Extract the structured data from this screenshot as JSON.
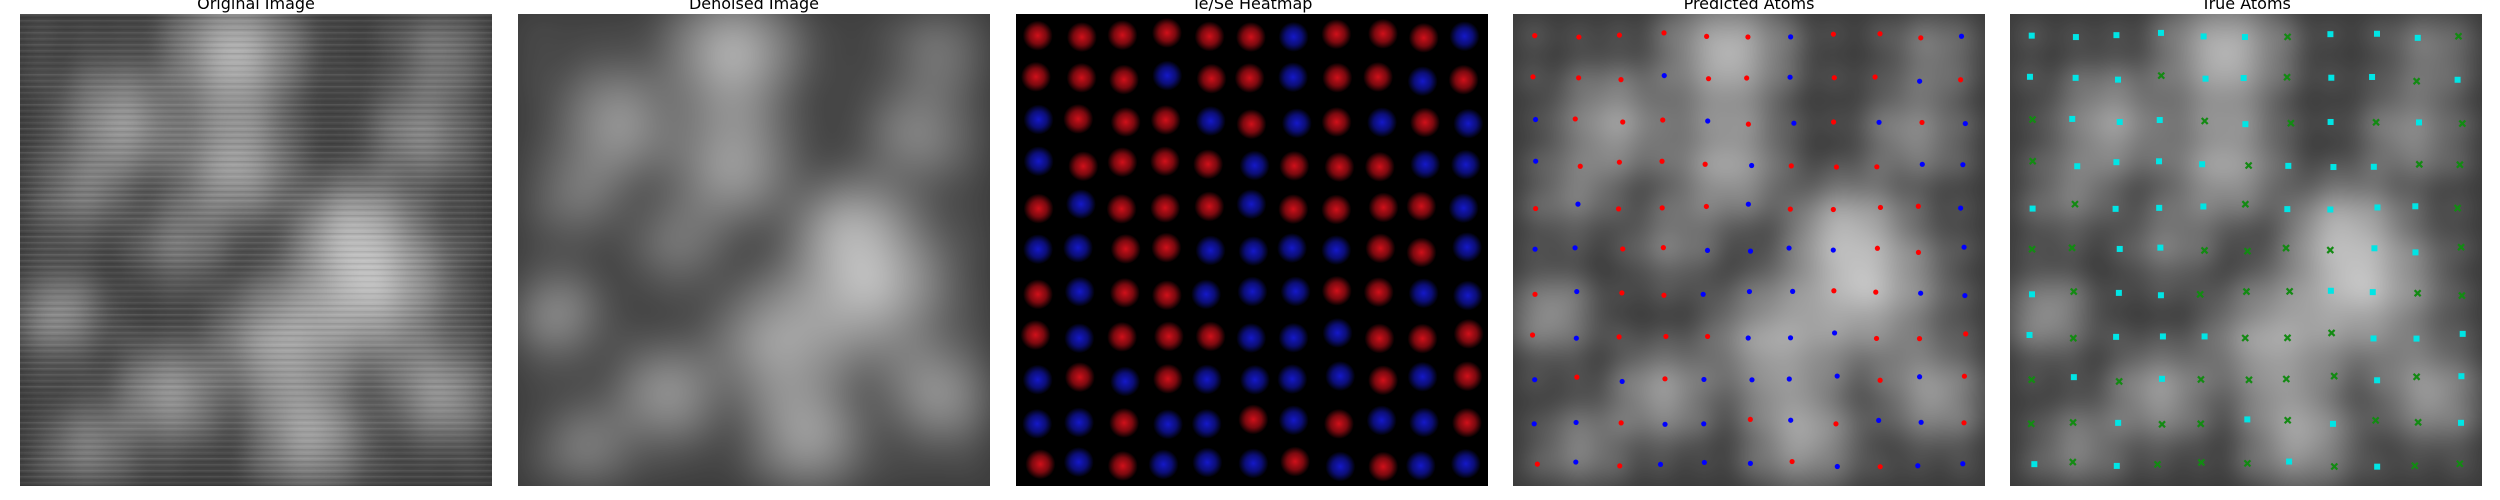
{
  "panels": [
    {
      "id": "original",
      "title": "Original Image",
      "kind": "gray-noisy"
    },
    {
      "id": "denoised",
      "title": "Denoised Image",
      "kind": "gray-smooth"
    },
    {
      "id": "heatmap",
      "title": "Te/Se Heatmap",
      "kind": "heatmap"
    },
    {
      "id": "predicted",
      "title": "Predicted Atoms",
      "kind": "predicted"
    },
    {
      "id": "true",
      "title": "True Atoms",
      "kind": "true"
    }
  ],
  "colors": {
    "te": "#d0101a",
    "se": "#1418c8",
    "predicted_te": "#ff0000",
    "predicted_se": "#0000ff",
    "true_te": "#00e5e5",
    "true_se": "#138a13"
  },
  "lattice": {
    "rows": [
      [
        "te",
        "te",
        "te",
        "te",
        "te",
        "te",
        "se",
        "te",
        "te",
        "te",
        "se"
      ],
      [
        "te",
        "te",
        "te",
        "se",
        "te",
        "te",
        "se",
        "te",
        "te",
        "se",
        "te"
      ],
      [
        "se",
        "te",
        "te",
        "te",
        "se",
        "te",
        "se",
        "te",
        "se",
        "te",
        "se"
      ],
      [
        "se",
        "te",
        "te",
        "te",
        "te",
        "se",
        "te",
        "te",
        "te",
        "se",
        "se"
      ],
      [
        "te",
        "se",
        "te",
        "te",
        "te",
        "se",
        "te",
        "te",
        "te",
        "te",
        "se"
      ],
      [
        "se",
        "se",
        "te",
        "te",
        "se",
        "se",
        "se",
        "se",
        "te",
        "te",
        "se"
      ],
      [
        "te",
        "se",
        "te",
        "te",
        "se",
        "se",
        "se",
        "te",
        "te",
        "se",
        "se"
      ],
      [
        "te",
        "se",
        "te",
        "te",
        "te",
        "se",
        "se",
        "se",
        "te",
        "te",
        "te"
      ],
      [
        "se",
        "te",
        "se",
        "te",
        "se",
        "se",
        "se",
        "se",
        "te",
        "se",
        "te"
      ],
      [
        "se",
        "se",
        "te",
        "se",
        "se",
        "te",
        "se",
        "te",
        "se",
        "se",
        "te"
      ],
      [
        "te",
        "se",
        "te",
        "se",
        "se",
        "se",
        "te",
        "se",
        "te",
        "se",
        "se"
      ]
    ]
  }
}
